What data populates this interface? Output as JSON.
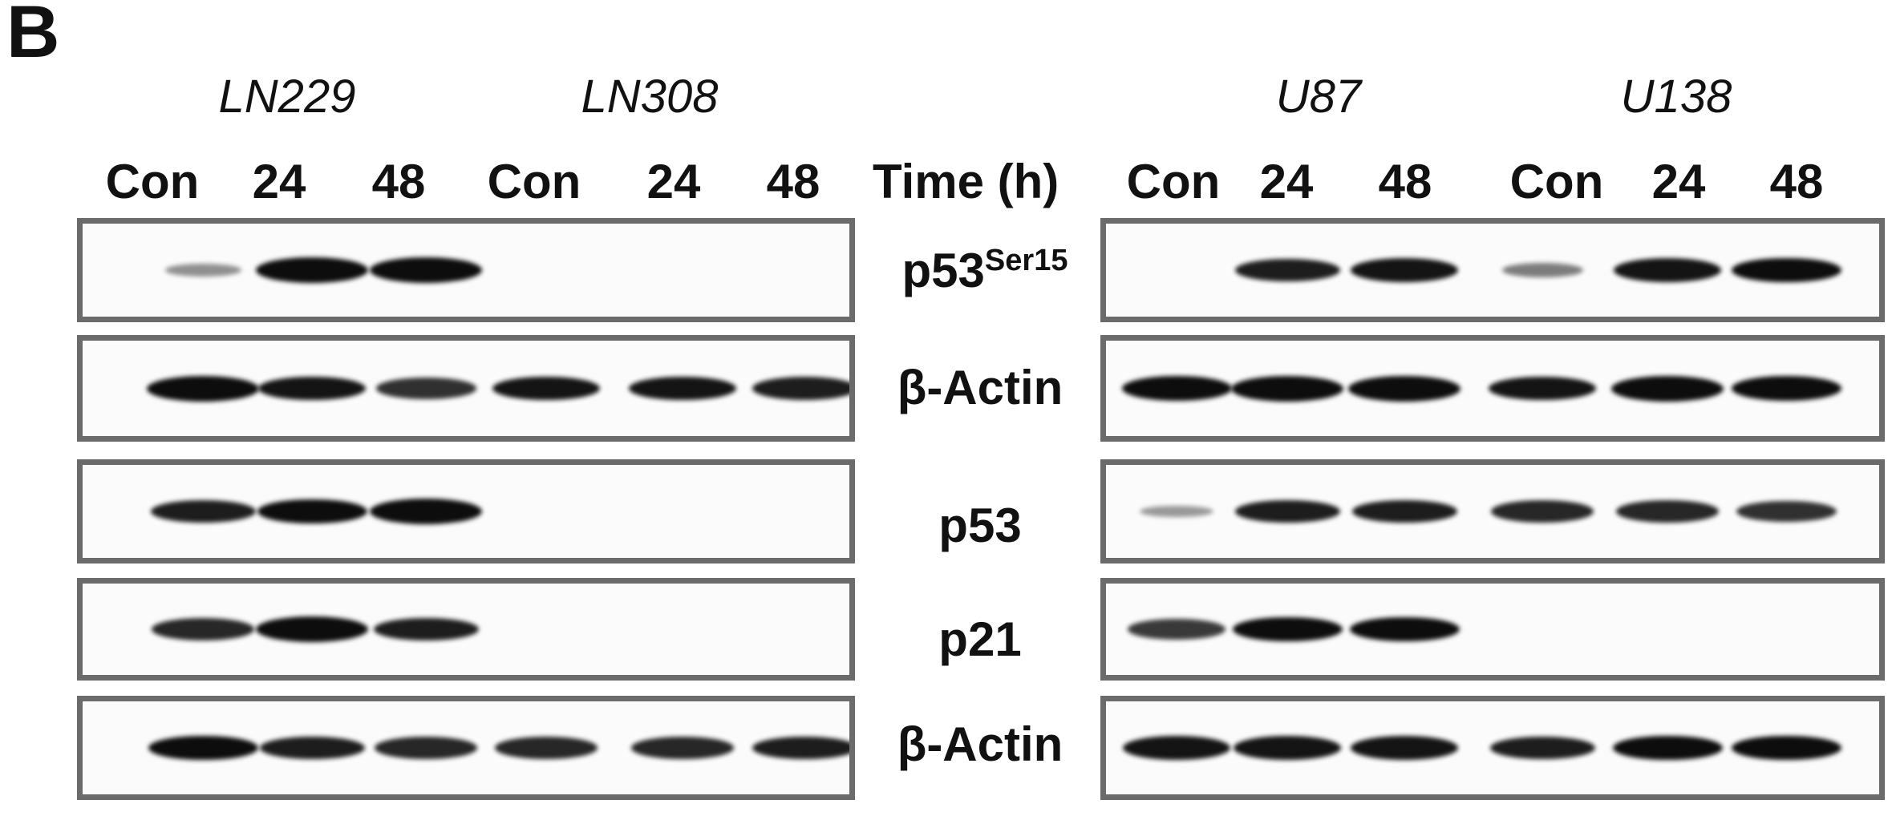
{
  "figure": {
    "panel_label": "B",
    "time_axis_label": "Time (h)",
    "left_group": {
      "cell_lines": [
        "LN229",
        "LN308"
      ],
      "lanes": [
        "Con",
        "24",
        "48",
        "Con",
        "24",
        "48"
      ]
    },
    "right_group": {
      "cell_lines": [
        "U87",
        "U138"
      ],
      "lanes": [
        "Con",
        "24",
        "48",
        "Con",
        "24",
        "48"
      ]
    },
    "rows": [
      {
        "label_main": "p53",
        "label_sup": "Ser15"
      },
      {
        "label_main": "β-Actin",
        "label_sup": ""
      },
      {
        "label_main": "p53",
        "label_sup": ""
      },
      {
        "label_main": "p21",
        "label_sup": ""
      },
      {
        "label_main": "β-Actin",
        "label_sup": ""
      }
    ],
    "band_intensity": {
      "note_units": "relative band darkness 0-1 per lane (Con,24,48,Con,24,48)",
      "left": [
        [
          0.25,
          1.0,
          1.0,
          0.0,
          0.0,
          0.0
        ],
        [
          1.0,
          0.9,
          0.75,
          0.9,
          0.9,
          0.85
        ],
        [
          0.85,
          0.95,
          1.0,
          0.0,
          0.0,
          0.0
        ],
        [
          0.8,
          1.0,
          0.85,
          0.0,
          0.0,
          0.0
        ],
        [
          0.95,
          0.85,
          0.8,
          0.8,
          0.8,
          0.85
        ]
      ],
      "right": [
        [
          0.0,
          0.85,
          0.9,
          0.35,
          0.9,
          0.95
        ],
        [
          0.95,
          1.0,
          1.0,
          0.9,
          1.0,
          0.95
        ],
        [
          0.2,
          0.85,
          0.85,
          0.8,
          0.8,
          0.75
        ],
        [
          0.7,
          0.95,
          0.95,
          0.0,
          0.0,
          0.0
        ],
        [
          0.9,
          0.9,
          0.9,
          0.85,
          0.95,
          0.95
        ]
      ]
    }
  }
}
